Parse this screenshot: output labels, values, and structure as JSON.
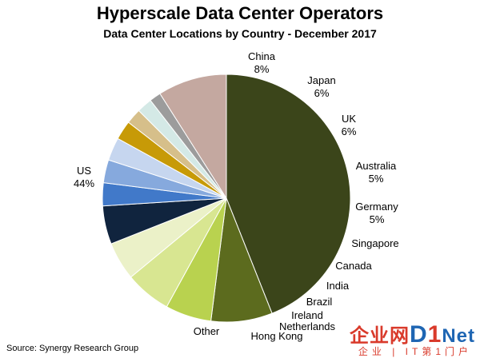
{
  "chart_data": {
    "type": "pie",
    "title": "Hyperscale Data Center Operators",
    "subtitle": "Data Center Locations by Country - December 2017",
    "slices": [
      {
        "label": "US",
        "value": 44,
        "value_label": "44%",
        "color": "#3b451a"
      },
      {
        "label": "China",
        "value": 8,
        "value_label": "8%",
        "color": "#5c6b1e"
      },
      {
        "label": "Japan",
        "value": 6,
        "value_label": "6%",
        "color": "#b9d24f"
      },
      {
        "label": "UK",
        "value": 6,
        "value_label": "6%",
        "color": "#d8e691"
      },
      {
        "label": "Australia",
        "value": 5,
        "value_label": "5%",
        "color": "#ebf1c8"
      },
      {
        "label": "Germany",
        "value": 5,
        "value_label": "5%",
        "color": "#10243e"
      },
      {
        "label": "Singapore",
        "value": 3,
        "value_label": "",
        "color": "#4179c9"
      },
      {
        "label": "Canada",
        "value": 3,
        "value_label": "",
        "color": "#86a9dd"
      },
      {
        "label": "India",
        "value": 3,
        "value_label": "",
        "color": "#c6d6ef"
      },
      {
        "label": "Brazil",
        "value": 2.5,
        "value_label": "",
        "color": "#c79a07"
      },
      {
        "label": "Ireland",
        "value": 2,
        "value_label": "",
        "color": "#d6bf8a"
      },
      {
        "label": "Netherlands",
        "value": 2,
        "value_label": "",
        "color": "#d4e9e6"
      },
      {
        "label": "Hong Kong",
        "value": 1.5,
        "value_label": "",
        "color": "#9c9c9c"
      },
      {
        "label": "Other",
        "value": 9,
        "value_label": "",
        "color": "#c4a8a0"
      }
    ]
  },
  "source": "Source: Synergy Research Group",
  "watermark": {
    "text_a": "企业网",
    "text_d": "D",
    "text_1": "1",
    "text_net": "Net",
    "sub": "企业 | IT第1门户"
  }
}
